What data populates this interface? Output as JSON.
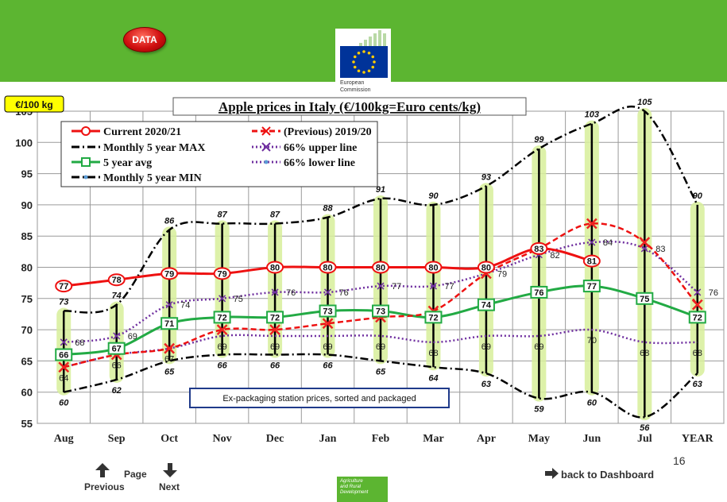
{
  "header": {
    "data_button_label": "DATA",
    "ec_logo_line1": "European",
    "ec_logo_line2": "Commission",
    "bar_color": "#5cb531"
  },
  "unit_badge": "€/100 kg",
  "note_box": "Ex-packaging station prices, sorted and packaged",
  "chart_data": {
    "type": "line",
    "title": "Apple prices in Italy (€/100kg=Euro cents/kg)",
    "categories": [
      "Aug",
      "Sep",
      "Oct",
      "Nov",
      "Dec",
      "Jan",
      "Feb",
      "Mar",
      "Apr",
      "May",
      "Jun",
      "Jul",
      "YEAR"
    ],
    "ylim": [
      55,
      105
    ],
    "yticks": [
      55,
      60,
      65,
      70,
      75,
      80,
      85,
      90,
      95,
      100,
      105
    ],
    "grid": true,
    "legend_position": "top-left",
    "series": [
      {
        "name": "Current 2020/21",
        "color": "#ee1111",
        "style": "solid-circle",
        "values": [
          77,
          78,
          79,
          79,
          80,
          80,
          80,
          80,
          80,
          83,
          81,
          null,
          null
        ]
      },
      {
        "name": "(Previous) 2019/20",
        "color": "#ee1111",
        "style": "dashed-x",
        "values": [
          64,
          66,
          67,
          70,
          70,
          71,
          72,
          73,
          79,
          83,
          87,
          84,
          74
        ]
      },
      {
        "name": "Monthly 5 year MAX",
        "color": "#000000",
        "style": "dashdot",
        "values": [
          73,
          74,
          86,
          87,
          87,
          88,
          91,
          90,
          93,
          99,
          103,
          105,
          90
        ]
      },
      {
        "name": "66% upper line",
        "color": "#7030a0",
        "style": "dotted-x",
        "values": [
          68,
          69,
          74,
          75,
          76,
          76,
          77,
          77,
          79,
          82,
          84,
          83,
          76
        ]
      },
      {
        "name": "5 year avg",
        "color": "#22aa44",
        "style": "solid-square",
        "values": [
          66,
          67,
          71,
          72,
          72,
          73,
          73,
          72,
          74,
          76,
          77,
          75,
          72
        ]
      },
      {
        "name": "66% lower line",
        "color": "#7030a0",
        "style": "dotted",
        "values": [
          64,
          66,
          67,
          69,
          69,
          69,
          69,
          68,
          69,
          69,
          70,
          68,
          68
        ]
      },
      {
        "name": "Monthly 5 year MIN",
        "color": "#000000",
        "style": "dashdot",
        "values": [
          60,
          62,
          65,
          66,
          66,
          66,
          65,
          64,
          63,
          59,
          60,
          56,
          63
        ]
      }
    ]
  },
  "footer": {
    "page_label": "Page",
    "previous_label": "Previous",
    "next_label": "Next",
    "page_number": "16",
    "back_label": "back to Dashboard",
    "agri_line1": "Agriculture",
    "agri_line2": "and Rural",
    "agri_line3": "Development"
  }
}
